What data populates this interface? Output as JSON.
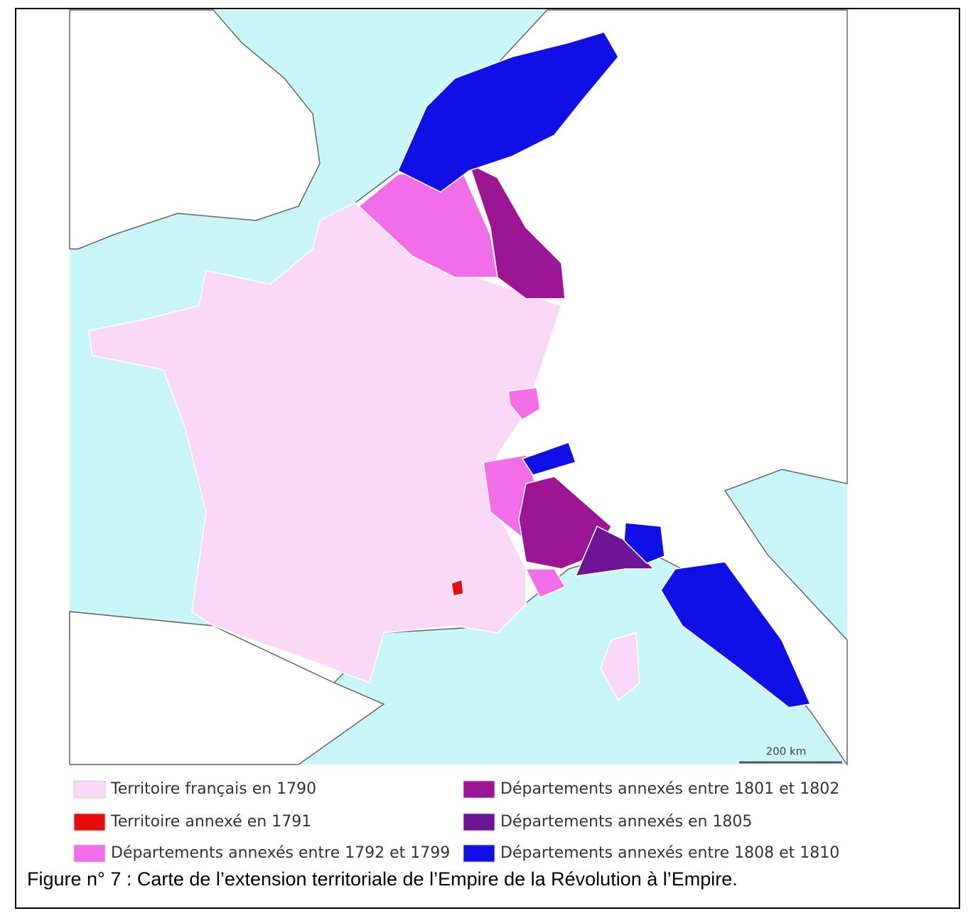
{
  "map": {
    "scale_label": "200 km"
  },
  "legend": [
    {
      "label": "Territoire français en 1790",
      "color": "#f9d8f8"
    },
    {
      "label": "Territoire annexé en 1791",
      "color": "#e80d0d"
    },
    {
      "label": "Départements annexés entre 1792 et 1799",
      "color": "#f26ee8"
    },
    {
      "label": "Départements annexés entre 1801 et 1802",
      "color": "#9c1593"
    },
    {
      "label": "Départements annexés en 1805",
      "color": "#6c1596"
    },
    {
      "label": "Départements annexés entre 1808 et 1810",
      "color": "#1010e6"
    }
  ],
  "caption": "Figure n° 7 : Carte de l’extension territoriale de l’Empire de la Révolution à l’Empire."
}
